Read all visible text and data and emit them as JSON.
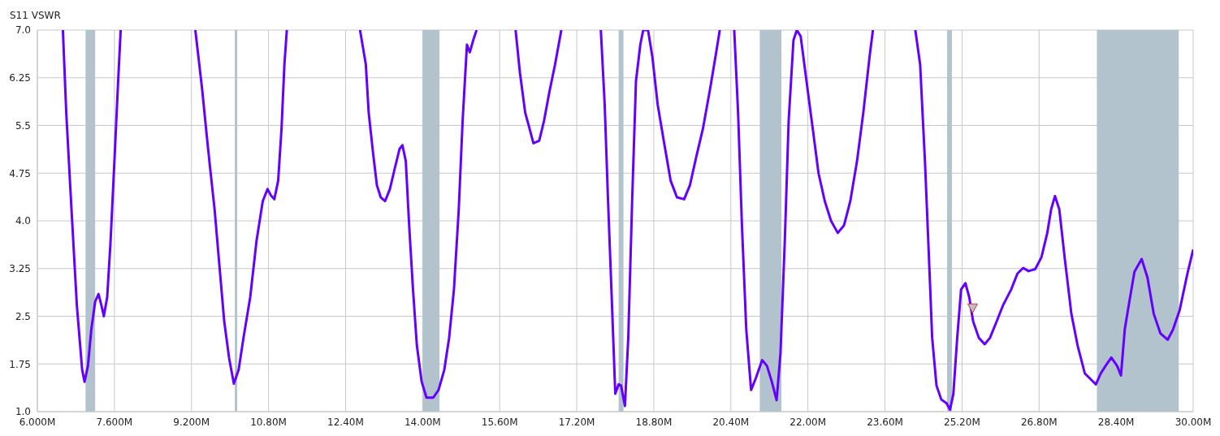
{
  "chart_data": {
    "type": "line",
    "title": "S11 VSWR",
    "xlim": [
      6,
      30
    ],
    "xticks": [
      {
        "value": 6,
        "label": "6.000M"
      },
      {
        "value": 7.6,
        "label": "7.600M"
      },
      {
        "value": 9.2,
        "label": "9.200M"
      },
      {
        "value": 10.8,
        "label": "10.80M"
      },
      {
        "value": 12.4,
        "label": "12.40M"
      },
      {
        "value": 14,
        "label": "14.00M"
      },
      {
        "value": 15.6,
        "label": "15.60M"
      },
      {
        "value": 17.2,
        "label": "17.20M"
      },
      {
        "value": 18.8,
        "label": "18.80M"
      },
      {
        "value": 20.4,
        "label": "20.40M"
      },
      {
        "value": 22,
        "label": "22.00M"
      },
      {
        "value": 23.6,
        "label": "23.60M"
      },
      {
        "value": 25.2,
        "label": "25.20M"
      },
      {
        "value": 26.8,
        "label": "26.80M"
      },
      {
        "value": 28.4,
        "label": "28.40M"
      },
      {
        "value": 30,
        "label": "30.00M"
      }
    ],
    "ylim": [
      1,
      7
    ],
    "yticks": [
      {
        "value": 1,
        "label": "1.0"
      },
      1.75,
      2.5,
      3.25,
      {
        "value": 4,
        "label": "4.0"
      },
      4.75,
      5.5,
      6.25,
      {
        "value": 7,
        "label": "7.0"
      }
    ],
    "grid": true,
    "line_style": "solid",
    "bands": [
      {
        "axis": "x",
        "from": 7.0,
        "to": 7.2,
        "color": "#b3c3ce"
      },
      {
        "axis": "x",
        "from": 10.1,
        "to": 10.15,
        "color": "#b3c3ce"
      },
      {
        "axis": "x",
        "from": 14.0,
        "to": 14.35,
        "color": "#b3c3ce"
      },
      {
        "axis": "x",
        "from": 18.07,
        "to": 18.17,
        "color": "#b3c3ce"
      },
      {
        "axis": "x",
        "from": 21.0,
        "to": 21.45,
        "color": "#b3c3ce"
      },
      {
        "axis": "x",
        "from": 24.89,
        "to": 24.99,
        "color": "#b3c3ce"
      },
      {
        "axis": "x",
        "from": 28.0,
        "to": 29.7,
        "color": "#b3c3ce"
      }
    ],
    "series": [
      {
        "color": "#6400ff",
        "marker": "none",
        "x": [
          6.53,
          6.6,
          6.7,
          6.82,
          6.93,
          6.98,
          7.05,
          7.12,
          7.2,
          7.27,
          7.33,
          7.38,
          7.45,
          7.52,
          7.6,
          7.67,
          7.73,
          8.5,
          9.28,
          9.42,
          9.52,
          9.58,
          9.68,
          9.78,
          9.88,
          9.98,
          10.08,
          10.18,
          10.28,
          10.42,
          10.55,
          10.68,
          10.78,
          10.85,
          10.92,
          11.0,
          11.07,
          11.13,
          11.18,
          12.0,
          12.7,
          12.82,
          12.88,
          12.97,
          13.05,
          13.13,
          13.22,
          13.32,
          13.42,
          13.52,
          13.58,
          13.65,
          13.72,
          13.8,
          13.88,
          13.98,
          14.08,
          14.22,
          14.33,
          14.45,
          14.55,
          14.65,
          14.75,
          14.83,
          14.92,
          14.98,
          15.05,
          15.12,
          15.5,
          15.93,
          16.02,
          16.13,
          16.22,
          16.3,
          16.42,
          16.52,
          16.63,
          16.75,
          16.88,
          17.3,
          17.7,
          17.78,
          17.85,
          17.92,
          18.0,
          18.07,
          18.12,
          18.2,
          18.27,
          18.35,
          18.43,
          18.52,
          18.58,
          18.68,
          18.77,
          18.88,
          19.02,
          19.15,
          19.28,
          19.43,
          19.55,
          19.68,
          19.82,
          19.97,
          20.08,
          20.17,
          20.3,
          20.47,
          20.55,
          20.63,
          20.72,
          20.82,
          20.92,
          21.05,
          21.15,
          21.25,
          21.35,
          21.43,
          21.52,
          21.6,
          21.7,
          21.77,
          21.85,
          21.97,
          22.1,
          22.22,
          22.35,
          22.48,
          22.62,
          22.75,
          22.88,
          23.02,
          23.15,
          23.28,
          23.35,
          23.8,
          24.23,
          24.33,
          24.43,
          24.52,
          24.58,
          24.67,
          24.77,
          24.88,
          24.95,
          25.02,
          25.1,
          25.18,
          25.27,
          25.35,
          25.43,
          25.55,
          25.67,
          25.78,
          25.92,
          26.05,
          26.22,
          26.35,
          26.47,
          26.58,
          26.72,
          26.85,
          26.97,
          27.05,
          27.13,
          27.22,
          27.33,
          27.47,
          27.6,
          27.75,
          27.98,
          28.08,
          28.18,
          28.3,
          28.42,
          28.5,
          28.58,
          28.67,
          28.78,
          28.93,
          29.05,
          29.18,
          29.32,
          29.47,
          29.58,
          29.72,
          29.88,
          30.0
        ],
        "values": [
          7.0,
          5.7,
          4.3,
          2.67,
          1.66,
          1.47,
          1.72,
          2.29,
          2.73,
          2.85,
          2.67,
          2.5,
          2.8,
          3.68,
          4.94,
          6.08,
          7.0,
          null,
          7.0,
          6.08,
          5.32,
          4.88,
          4.18,
          3.3,
          2.42,
          1.85,
          1.44,
          1.66,
          2.16,
          2.8,
          3.68,
          4.31,
          4.5,
          4.4,
          4.34,
          4.63,
          5.45,
          6.46,
          7.0,
          null,
          7.0,
          6.46,
          5.7,
          5.07,
          4.56,
          4.37,
          4.31,
          4.5,
          4.82,
          5.13,
          5.19,
          4.94,
          3.93,
          2.92,
          2.04,
          1.47,
          1.22,
          1.22,
          1.34,
          1.66,
          2.16,
          2.92,
          4.18,
          5.57,
          6.77,
          6.65,
          6.84,
          7.0,
          null,
          7.0,
          6.33,
          5.7,
          5.45,
          5.22,
          5.26,
          5.57,
          6.02,
          6.46,
          7.0,
          null,
          7.0,
          5.83,
          4.31,
          2.92,
          1.28,
          1.43,
          1.41,
          1.09,
          2.16,
          4.31,
          6.2,
          6.77,
          7.0,
          7.0,
          6.58,
          5.83,
          5.2,
          4.63,
          4.37,
          4.34,
          4.56,
          5.0,
          5.45,
          6.08,
          6.58,
          7.0,
          null,
          7.0,
          5.7,
          3.93,
          2.29,
          1.34,
          1.53,
          1.81,
          1.72,
          1.47,
          1.18,
          1.91,
          3.68,
          5.57,
          6.84,
          7.0,
          6.9,
          6.2,
          5.45,
          4.75,
          4.31,
          4.0,
          3.81,
          3.93,
          4.31,
          4.94,
          5.7,
          6.58,
          7.0,
          null,
          7.0,
          6.46,
          4.94,
          3.3,
          2.16,
          1.41,
          1.19,
          1.13,
          1.03,
          1.28,
          2.16,
          2.92,
          3.02,
          2.8,
          2.42,
          2.16,
          2.06,
          2.16,
          2.42,
          2.67,
          2.92,
          3.17,
          3.26,
          3.21,
          3.24,
          3.43,
          3.81,
          4.18,
          4.39,
          4.18,
          3.43,
          2.54,
          2.04,
          1.6,
          1.43,
          1.6,
          1.72,
          1.85,
          1.72,
          1.57,
          2.3,
          2.71,
          3.2,
          3.4,
          3.11,
          2.54,
          2.23,
          2.13,
          2.29,
          2.6,
          3.17,
          3.55
        ]
      },
      {
        "type": "scatter",
        "color": "#e83030",
        "marker": "triangle",
        "x": [
          25.42
        ],
        "values": [
          2.63
        ]
      }
    ]
  }
}
